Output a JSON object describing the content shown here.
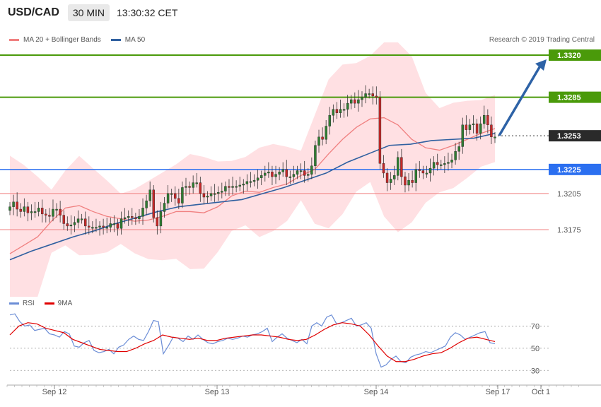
{
  "header": {
    "symbol": "USD/CAD",
    "timeframe": "30 MIN",
    "time": "13:30:32 CET"
  },
  "legend": {
    "ma20": "MA 20 + Bollinger Bands",
    "ma50": "MA 50"
  },
  "credit": "Research © 2019 Trading Central",
  "rsi_legend": {
    "rsi": "RSI",
    "ma": "9MA"
  },
  "colors": {
    "up": "#2e7d32",
    "down": "#c62828",
    "ma20": "#f08080",
    "ma50": "#3060a0",
    "band": "#ffe0e3",
    "green_level": "#4a9a0a",
    "blue_level": "#2b6ff0",
    "red_level": "#f08080",
    "arrow": "#2d62a6",
    "rsi": "#6b8dd6",
    "rsi_ma": "#e00000"
  },
  "chart_data": [
    {
      "type": "line",
      "title": "USD/CAD",
      "timeframe": "30 MIN",
      "x_labels": [
        "Sep 12",
        "Sep 13",
        "Sep 14",
        "Sep 17",
        "Oct 1"
      ],
      "ylim": [
        1.314,
        1.334
      ],
      "price_levels": [
        {
          "value": "1.3320",
          "color": "green",
          "kind": "target"
        },
        {
          "value": "1.3285",
          "color": "green",
          "kind": "resistance"
        },
        {
          "value": "1.3253",
          "color": "dark",
          "kind": "last"
        },
        {
          "value": "1.3225",
          "color": "blue",
          "kind": "pivot"
        },
        {
          "value": "1.3205",
          "color": "red",
          "kind": "support"
        },
        {
          "value": "1.3175",
          "color": "red",
          "kind": "support"
        }
      ],
      "candles_close": [
        1.3194,
        1.3198,
        1.3192,
        1.319,
        1.3194,
        1.3189,
        1.319,
        1.319,
        1.3193,
        1.3188,
        1.3187,
        1.3186,
        1.3192,
        1.3192,
        1.3187,
        1.318,
        1.3178,
        1.3179,
        1.3181,
        1.3184,
        1.3184,
        1.3178,
        1.3177,
        1.3177,
        1.3177,
        1.3178,
        1.3177,
        1.3177,
        1.318,
        1.318,
        1.3176,
        1.3184,
        1.3185,
        1.3186,
        1.3185,
        1.3184,
        1.3186,
        1.3193,
        1.3199,
        1.3208,
        1.3185,
        1.3178,
        1.319,
        1.3197,
        1.3205,
        1.3205,
        1.3201,
        1.3197,
        1.321,
        1.3211,
        1.321,
        1.3214,
        1.3214,
        1.3205,
        1.3202,
        1.3203,
        1.3205,
        1.3205,
        1.3206,
        1.3207,
        1.3211,
        1.321,
        1.3211,
        1.3211,
        1.3212,
        1.3213,
        1.3215,
        1.3215,
        1.3216,
        1.3218,
        1.322,
        1.3222,
        1.3223,
        1.3219,
        1.3221,
        1.3223,
        1.3225,
        1.3219,
        1.3219,
        1.3221,
        1.3224,
        1.3224,
        1.322,
        1.3221,
        1.3228,
        1.3245,
        1.3252,
        1.325,
        1.3261,
        1.327,
        1.3275,
        1.3272,
        1.3275,
        1.3275,
        1.328,
        1.3283,
        1.328,
        1.3283,
        1.3285,
        1.3288,
        1.3288,
        1.3286,
        1.3285,
        1.323,
        1.3222,
        1.3214,
        1.3217,
        1.322,
        1.3235,
        1.3219,
        1.3212,
        1.3216,
        1.3214,
        1.3225,
        1.3224,
        1.3222,
        1.3222,
        1.3226,
        1.3231,
        1.3229,
        1.3229,
        1.323,
        1.3231,
        1.3233,
        1.324,
        1.3244,
        1.3262,
        1.3258,
        1.3262,
        1.3263,
        1.3255,
        1.3263,
        1.327,
        1.3262,
        1.3252,
        1.3252
      ],
      "series": [
        {
          "name": "MA 20 + Bollinger Bands",
          "values": [
            1.3155,
            1.3162,
            1.3169,
            1.3182,
            1.3193,
            1.3195,
            1.319,
            1.3186,
            1.3184,
            1.3182,
            1.3183,
            1.3186,
            1.319,
            1.319,
            1.3189,
            1.3194,
            1.3203,
            1.3207,
            1.3206,
            1.321,
            1.3213,
            1.322,
            1.3225,
            1.3238,
            1.325,
            1.326,
            1.3267,
            1.3268,
            1.3262,
            1.325,
            1.3243,
            1.3241,
            1.3245,
            1.325,
            1.3255,
            1.3259
          ]
        },
        {
          "name": "MA 50",
          "values": [
            1.315,
            1.3157,
            1.3163,
            1.3169,
            1.3174,
            1.318,
            1.3185,
            1.319,
            1.3194,
            1.3196,
            1.3198,
            1.32,
            1.3205,
            1.321,
            1.3216,
            1.3222,
            1.3231,
            1.3238,
            1.3245,
            1.3246,
            1.3249,
            1.325,
            1.3251,
            1.3255
          ]
        }
      ]
    },
    {
      "type": "line",
      "title": "",
      "ylim": [
        20,
        90
      ],
      "y_ticks": [
        30,
        50,
        70
      ],
      "series": [
        {
          "name": "RSI",
          "values": [
            80,
            81,
            74,
            70,
            71,
            66,
            67,
            68,
            63,
            62,
            60,
            65,
            63,
            52,
            51,
            55,
            57,
            48,
            46,
            47,
            49,
            45,
            51,
            53,
            58,
            61,
            58,
            57,
            65,
            75,
            74,
            45,
            52,
            60,
            59,
            56,
            61,
            58,
            62,
            58,
            55,
            54,
            56,
            57,
            59,
            58,
            59,
            61,
            60,
            62,
            63,
            65,
            68,
            56,
            60,
            63,
            59,
            57,
            55,
            58,
            54,
            70,
            73,
            70,
            78,
            80,
            72,
            73,
            75,
            77,
            70,
            71,
            73,
            68,
            45,
            33,
            35,
            40,
            43,
            38,
            37,
            42,
            44,
            45,
            47,
            46,
            48,
            50,
            52,
            60,
            64,
            62,
            58,
            60,
            62,
            64,
            65,
            55,
            54
          ]
        },
        {
          "name": "9MA",
          "values": [
            62,
            70,
            73,
            72,
            68,
            66,
            64,
            58,
            55,
            52,
            49,
            48,
            47,
            47,
            50,
            54,
            57,
            62,
            60,
            59,
            58,
            59,
            57,
            57,
            59,
            60,
            61,
            62,
            62,
            61,
            60,
            58,
            57,
            58,
            62,
            67,
            71,
            73,
            72,
            70,
            62,
            52,
            43,
            38,
            38,
            40,
            43,
            45,
            46,
            50,
            55,
            59,
            60,
            58,
            56
          ]
        }
      ]
    }
  ]
}
